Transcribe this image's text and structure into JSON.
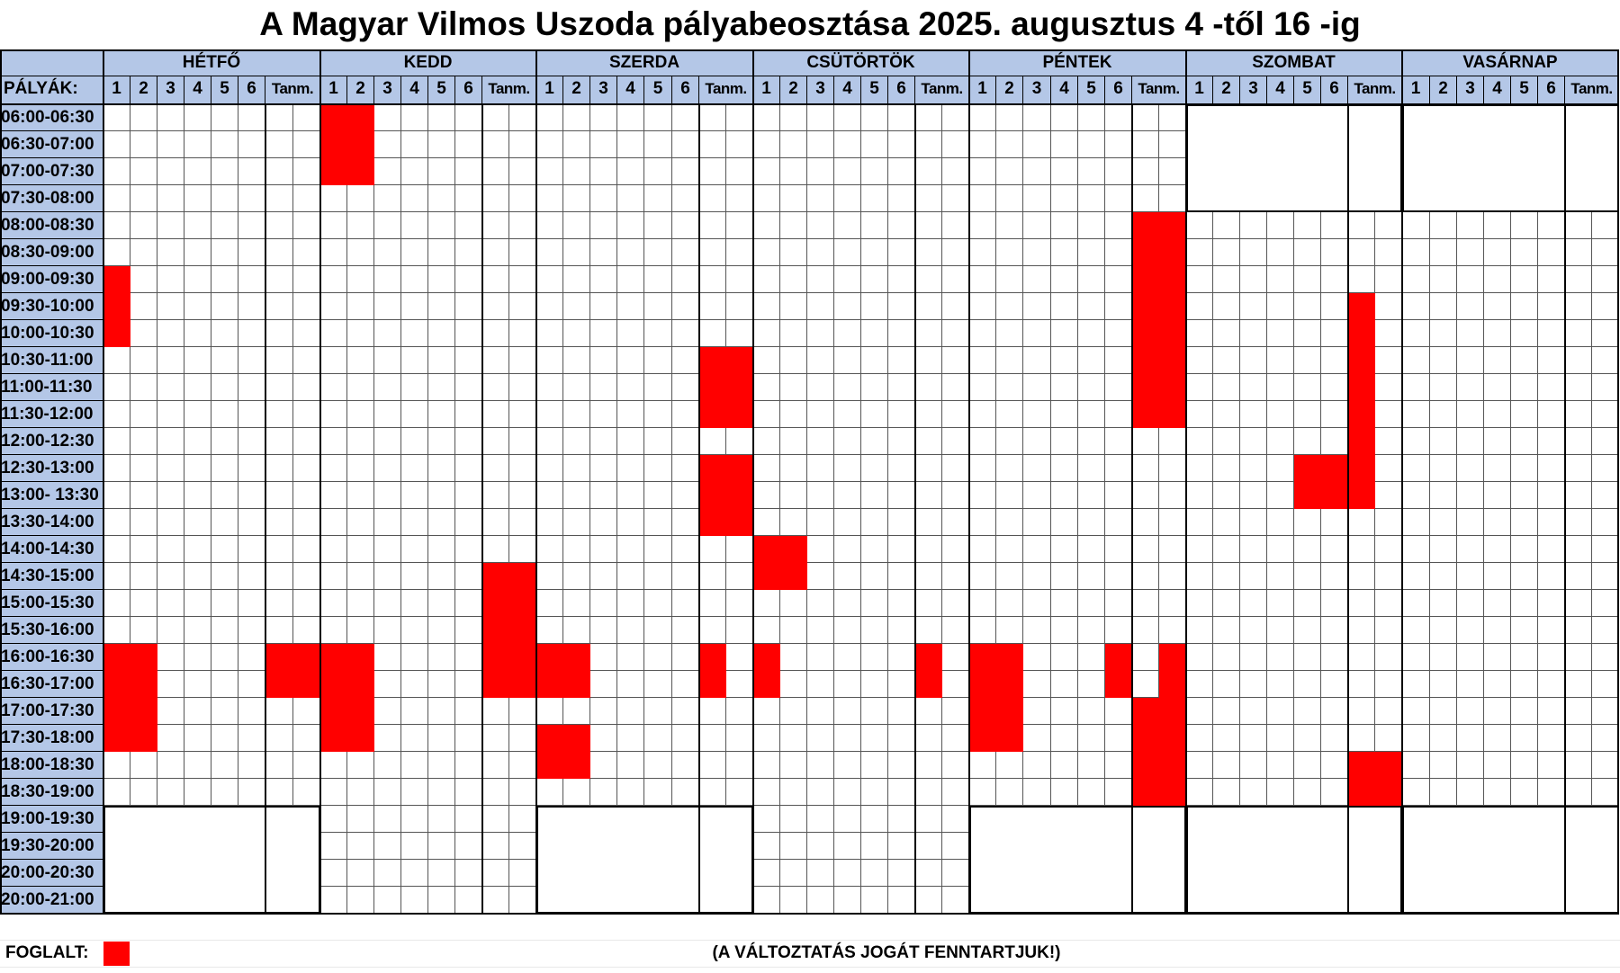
{
  "title": "A Magyar Vilmos Uszoda pályabeosztása 2025. augusztus 4 -től 16 -ig",
  "corner_label": "PÁLYÁK:",
  "lane_labels": [
    "1",
    "2",
    "3",
    "4",
    "5",
    "6",
    "Tanm."
  ],
  "times": [
    "06:00-06:30",
    "06:30-07:00",
    "07:00-07:30",
    "07:30-08:00",
    "08:00-08:30",
    "08:30-09:00",
    "09:00-09:30",
    "09:30-10:00",
    "10:00-10:30",
    "10:30-11:00",
    "11:00-11:30",
    "11:30-12:00",
    "12:00-12:30",
    "12:30-13:00",
    "13:00- 13:30",
    "13:30-14:00",
    "14:00-14:30",
    "14:30-15:00",
    "15:00-15:30",
    "15:30-16:00",
    "16:00-16:30",
    "16:30-17:00",
    "17:00-17:30",
    "17:30-18:00",
    "18:00-18:30",
    "18:30-19:00",
    "19:00-19:30",
    "19:30-20:00",
    "20:00-20:30",
    "20:00-21:00"
  ],
  "days": [
    {
      "name": "HÉTFŐ",
      "closed": [
        [
          26,
          29
        ]
      ],
      "booked": [
        [
          0,
          6,
          8
        ],
        [
          0,
          20,
          23
        ],
        [
          1,
          20,
          23
        ],
        [
          6,
          20,
          21
        ],
        [
          7,
          20,
          21
        ]
      ]
    },
    {
      "name": "KEDD",
      "closed": [],
      "booked": [
        [
          0,
          0,
          2
        ],
        [
          1,
          0,
          2
        ],
        [
          0,
          20,
          23
        ],
        [
          1,
          20,
          23
        ],
        [
          6,
          17,
          21
        ],
        [
          7,
          17,
          21
        ]
      ]
    },
    {
      "name": "SZERDA",
      "closed": [
        [
          26,
          29
        ]
      ],
      "booked": [
        [
          6,
          9,
          11
        ],
        [
          7,
          9,
          11
        ],
        [
          6,
          13,
          15
        ],
        [
          7,
          13,
          15
        ],
        [
          0,
          20,
          21
        ],
        [
          1,
          20,
          21
        ],
        [
          0,
          23,
          24
        ],
        [
          1,
          23,
          24
        ],
        [
          6,
          20,
          21
        ]
      ]
    },
    {
      "name": "CSÜTÖRTÖK",
      "closed": [],
      "booked": [
        [
          0,
          16,
          17
        ],
        [
          1,
          16,
          17
        ],
        [
          0,
          20,
          21
        ],
        [
          6,
          20,
          21
        ]
      ]
    },
    {
      "name": "PÉNTEK",
      "closed": [
        [
          26,
          29
        ]
      ],
      "booked": [
        [
          6,
          4,
          11
        ],
        [
          7,
          4,
          11
        ],
        [
          0,
          20,
          23
        ],
        [
          1,
          20,
          23
        ],
        [
          5,
          20,
          21
        ],
        [
          7,
          20,
          21
        ],
        [
          6,
          22,
          25
        ],
        [
          7,
          22,
          25
        ]
      ]
    },
    {
      "name": "SZOMBAT",
      "closed": [
        [
          0,
          3
        ],
        [
          26,
          29
        ]
      ],
      "booked": [
        [
          6,
          7,
          14
        ],
        [
          4,
          13,
          14
        ],
        [
          5,
          13,
          14
        ],
        [
          6,
          24,
          25
        ],
        [
          7,
          24,
          25
        ]
      ]
    },
    {
      "name": "VASÁRNAP",
      "closed": [
        [
          0,
          3
        ],
        [
          26,
          29
        ]
      ],
      "booked": []
    }
  ],
  "legend": {
    "label": "FOGLALT:",
    "color": "#ff0000"
  },
  "notice": "(A VÁLTOZTATÁS JOGÁT FENNTARTJUK!)",
  "colors": {
    "header_bg": "#b4c7e7",
    "booked": "#ff0000",
    "grid_line": "#555555",
    "border": "#000000"
  }
}
